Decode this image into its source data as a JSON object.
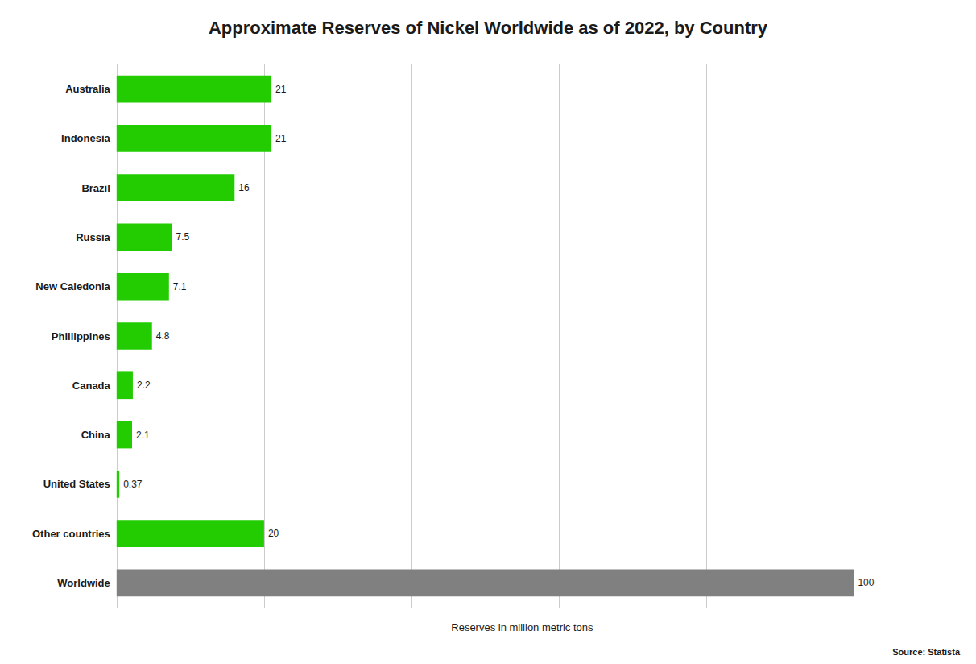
{
  "chart_data": {
    "type": "bar",
    "orientation": "horizontal",
    "title": "Approximate Reserves of Nickel Worldwide as of 2022, by Country",
    "x_label": "Reserves in million metric tons",
    "categories": [
      "Australia",
      "Indonesia",
      "Brazil",
      "Russia",
      "New Caledonia",
      "Phillippines",
      "Canada",
      "China",
      "United States",
      "Other countries",
      "Worldwide"
    ],
    "values": [
      21,
      21,
      16,
      7.5,
      7.1,
      4.8,
      2.2,
      2.1,
      0.37,
      20,
      100
    ],
    "colors": [
      "#22cc00",
      "#22cc00",
      "#22cc00",
      "#22cc00",
      "#22cc00",
      "#22cc00",
      "#22cc00",
      "#22cc00",
      "#22cc00",
      "#22cc00",
      "#808080"
    ],
    "data_labels": true,
    "xlim": [
      0,
      110
    ],
    "xticks": [
      0,
      20,
      40,
      60,
      80,
      100
    ],
    "tick_labels": "y",
    "grid": true,
    "annotations": [
      "Source: Statista"
    ]
  }
}
